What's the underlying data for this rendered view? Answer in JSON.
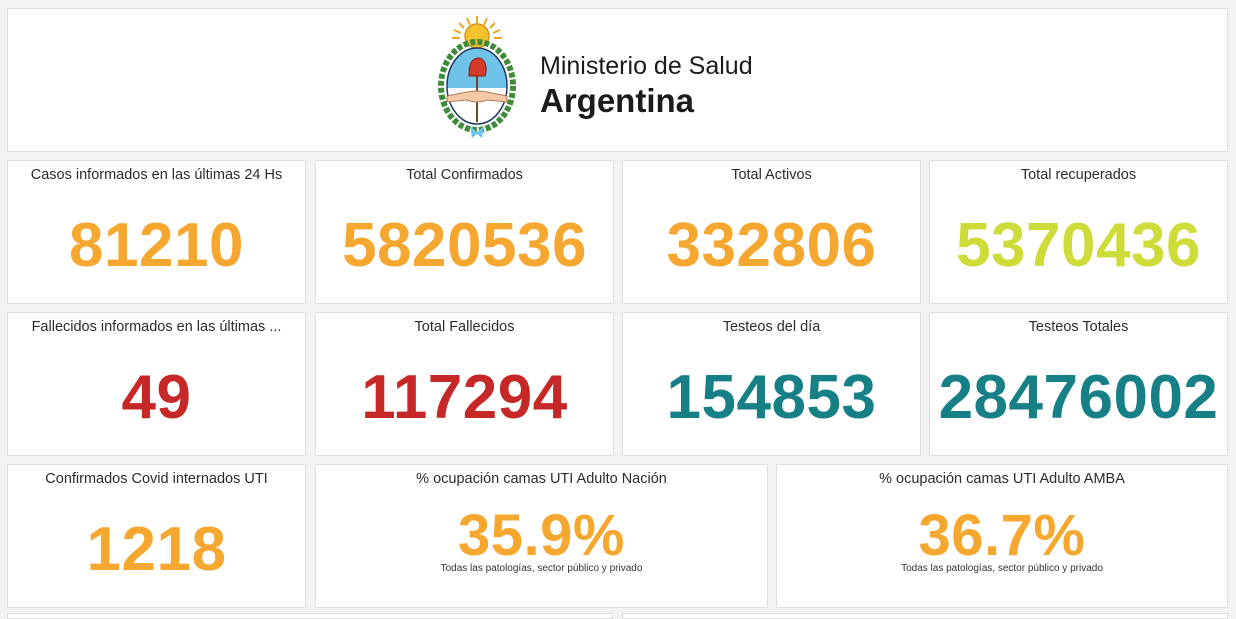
{
  "header": {
    "title": "Ministerio de Salud",
    "country": "Argentina",
    "seal_icon": "argentina-coat-of-arms-icon"
  },
  "colors": {
    "orange": "#f5a730",
    "lime": "#cddc39",
    "red": "#c62828",
    "teal": "#178086"
  },
  "stats": {
    "cases24h": {
      "label": "Casos informados en las últimas 24 Hs",
      "value": "81210"
    },
    "totalConfirmed": {
      "label": "Total Confirmados",
      "value": "5820536"
    },
    "totalActive": {
      "label": "Total Activos",
      "value": "332806"
    },
    "totalRecovered": {
      "label": "Total recuperados",
      "value": "5370436"
    },
    "deaths24h": {
      "label": "Fallecidos informados en las últimas ...",
      "value": "49"
    },
    "totalDeaths": {
      "label": "Total Fallecidos",
      "value": "117294"
    },
    "testsToday": {
      "label": "Testeos del día",
      "value": "154853"
    },
    "testsTotal": {
      "label": "Testeos Totales",
      "value": "28476002"
    },
    "icuCovid": {
      "label": "Confirmados Covid internados UTI",
      "value": "1218"
    },
    "icuNation": {
      "label": "% ocupación camas UTI Adulto Nación",
      "value": "35.9%",
      "note": "Todas las patologías, sector público y privado"
    },
    "icuAmba": {
      "label": "% ocupación camas UTI Adulto AMBA",
      "value": "36.7%",
      "note": "Todas las patologías, sector público y privado"
    }
  }
}
